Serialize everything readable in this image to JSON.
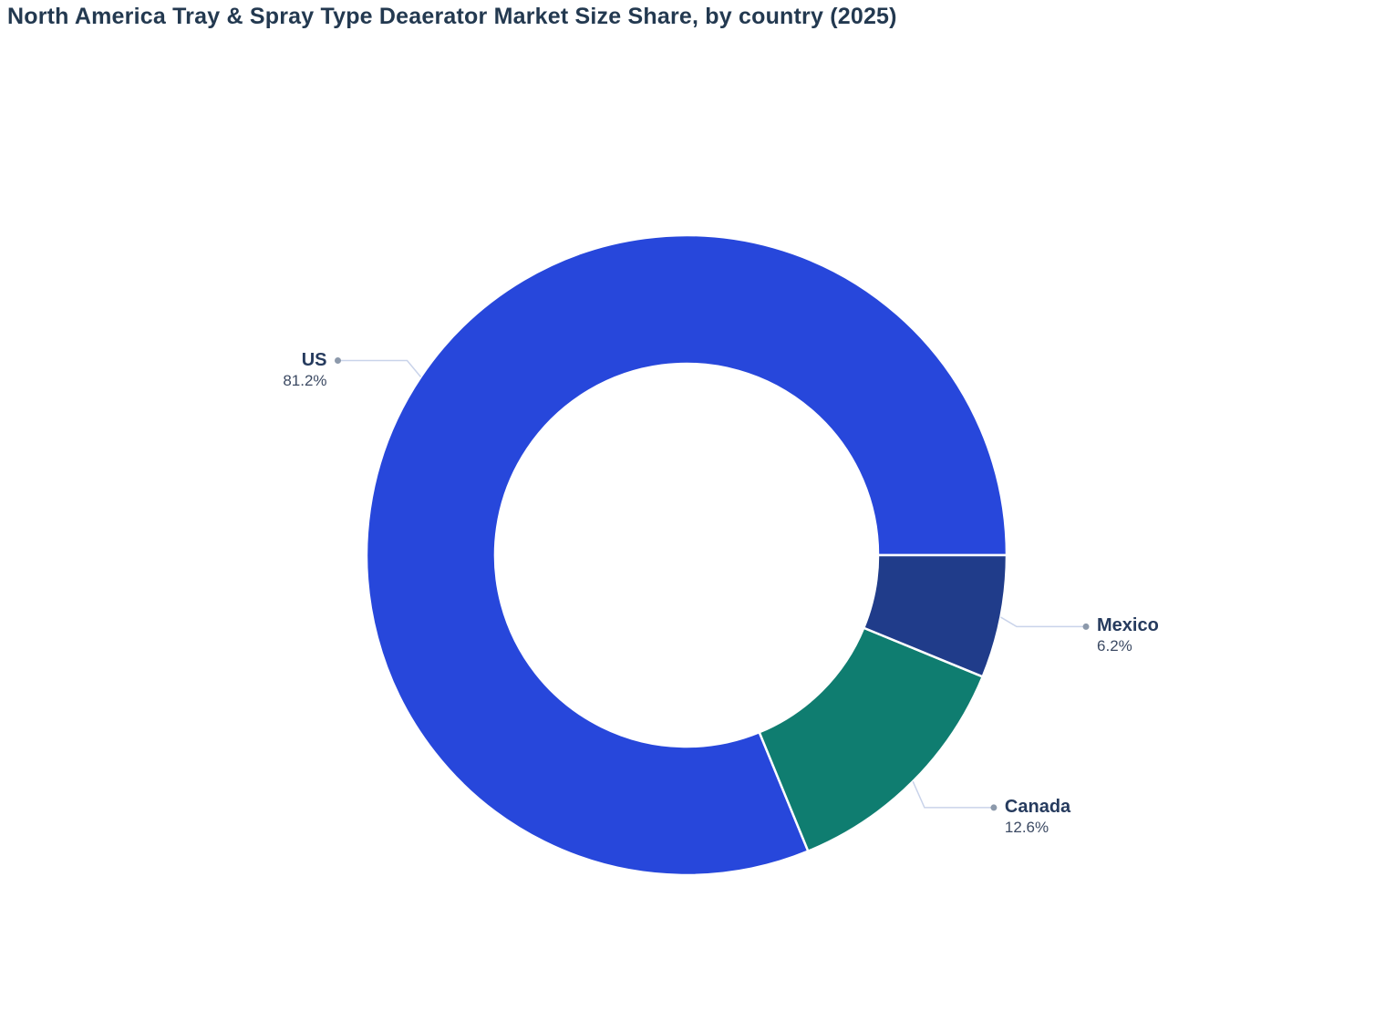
{
  "title": "North America Tray & Spray Type Deaerator Market Size Share, by country (2025)",
  "chart_data": {
    "type": "pie",
    "subtype": "donut",
    "title": "North America Tray & Spray Type Deaerator Market Size Share, by country (2025)",
    "unit": "%",
    "segments": [
      {
        "label": "US",
        "value": 81.2,
        "display_value": "81.2%",
        "color": "#2747DB",
        "label_side": "left",
        "label_dy": -8
      },
      {
        "label": "Canada",
        "value": 12.6,
        "display_value": "12.6%",
        "color": "#0F7D70",
        "label_side": "right",
        "label_dy": 16
      },
      {
        "label": "Mexico",
        "value": 6.2,
        "display_value": "6.2%",
        "color": "#203C8A",
        "label_side": "right",
        "label_dy": 7
      }
    ],
    "layout": {
      "start_angle_deg": 0,
      "direction": "counterclockwise",
      "inner_radius_ratio": 0.598,
      "legend": "none",
      "label_style": "outside-leader-lines"
    },
    "style": {
      "separator_color": "#FFFFFF",
      "leader_line_color": "#C9D3EA",
      "dot_color": "#8C99AB",
      "label_name_color": "#263B5E",
      "label_value_color": "#3C4A63",
      "title_color": "#233950",
      "background": "#FFFFFF"
    }
  }
}
